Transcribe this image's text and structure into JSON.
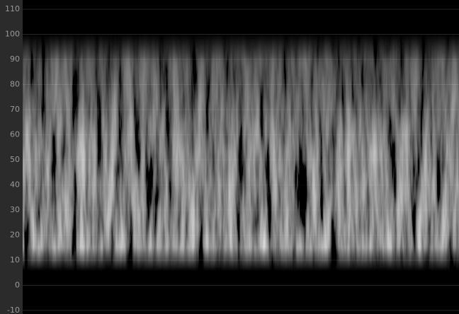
{
  "chart_data": {
    "type": "waveform",
    "ylim": [
      -10,
      110
    ],
    "yticks": [
      -10,
      0,
      10,
      20,
      30,
      40,
      50,
      60,
      70,
      80,
      90,
      100,
      110
    ],
    "grid": true
  }
}
